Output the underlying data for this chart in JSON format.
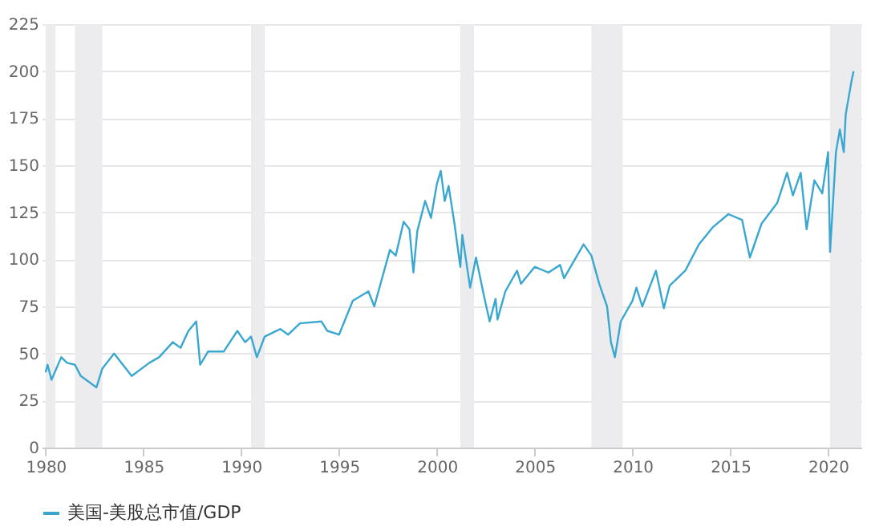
{
  "chart_data": {
    "type": "line",
    "legend": "bottom",
    "grid": "y",
    "xlim": [
      1979.8,
      2021.7
    ],
    "xticks": [
      1980,
      1985,
      1990,
      1995,
      2000,
      2005,
      2010,
      2015,
      2020
    ],
    "ylim": [
      0,
      225
    ],
    "yticks": [
      0,
      25,
      50,
      75,
      100,
      125,
      150,
      175,
      200,
      225
    ],
    "bands": [
      {
        "axis": "x",
        "from": 1980.0,
        "to": 1980.5,
        "color": "#ececef"
      },
      {
        "axis": "x",
        "from": 1981.5,
        "to": 1982.9,
        "color": "#ececef"
      },
      {
        "axis": "x",
        "from": 1990.5,
        "to": 1991.2,
        "color": "#ececef"
      },
      {
        "axis": "x",
        "from": 2001.2,
        "to": 2001.9,
        "color": "#ececef"
      },
      {
        "axis": "x",
        "from": 2007.9,
        "to": 2009.5,
        "color": "#ececef"
      },
      {
        "axis": "x",
        "from": 2020.1,
        "to": 2021.7,
        "color": "#ececef"
      }
    ],
    "series": [
      {
        "name": "美国-美股总市值/GDP",
        "color": "#3aa7d1",
        "x": [
          1980.0,
          1980.1,
          1980.3,
          1980.8,
          1981.1,
          1981.5,
          1981.8,
          1982.6,
          1982.9,
          1983.5,
          1984.4,
          1985.3,
          1985.8,
          1986.5,
          1986.9,
          1987.3,
          1987.7,
          1987.9,
          1988.3,
          1989.1,
          1989.8,
          1990.2,
          1990.5,
          1990.8,
          1991.2,
          1992.0,
          1992.4,
          1993.0,
          1994.1,
          1994.4,
          1995.0,
          1995.7,
          1996.5,
          1996.8,
          1997.6,
          1997.9,
          1998.3,
          1998.6,
          1998.8,
          1999.0,
          1999.4,
          1999.7,
          2000.0,
          2000.2,
          2000.4,
          2000.6,
          2000.9,
          2001.2,
          2001.3,
          2001.7,
          2002.0,
          2002.4,
          2002.7,
          2003.0,
          2003.1,
          2003.5,
          2004.1,
          2004.3,
          2005.0,
          2005.7,
          2006.3,
          2006.5,
          2007.5,
          2007.9,
          2008.3,
          2008.7,
          2008.9,
          2009.1,
          2009.4,
          2010.0,
          2010.2,
          2010.5,
          2011.2,
          2011.6,
          2011.9,
          2012.7,
          2013.4,
          2014.1,
          2014.9,
          2015.6,
          2016.0,
          2016.6,
          2017.4,
          2017.9,
          2018.2,
          2018.6,
          2018.9,
          2019.3,
          2019.7,
          2020.0,
          2020.1,
          2020.4,
          2020.6,
          2020.8,
          2020.9,
          2021.2,
          2021.3
        ],
        "values": [
          40,
          44,
          36,
          48,
          45,
          44,
          38,
          32,
          42,
          50,
          38,
          45,
          48,
          56,
          53,
          62,
          67,
          44,
          51,
          51,
          62,
          56,
          59,
          48,
          59,
          63,
          60,
          66,
          67,
          62,
          60,
          78,
          83,
          75,
          105,
          102,
          120,
          116,
          93,
          115,
          131,
          122,
          140,
          147,
          131,
          139,
          119,
          96,
          113,
          85,
          101,
          81,
          67,
          79,
          68,
          83,
          94,
          87,
          96,
          93,
          97,
          90,
          108,
          102,
          87,
          75,
          56,
          48,
          67,
          78,
          85,
          75,
          94,
          74,
          86,
          94,
          108,
          117,
          124,
          121,
          101,
          119,
          130,
          146,
          134,
          146,
          116,
          142,
          135,
          157,
          104,
          157,
          169,
          157,
          177,
          195,
          200
        ]
      }
    ]
  }
}
